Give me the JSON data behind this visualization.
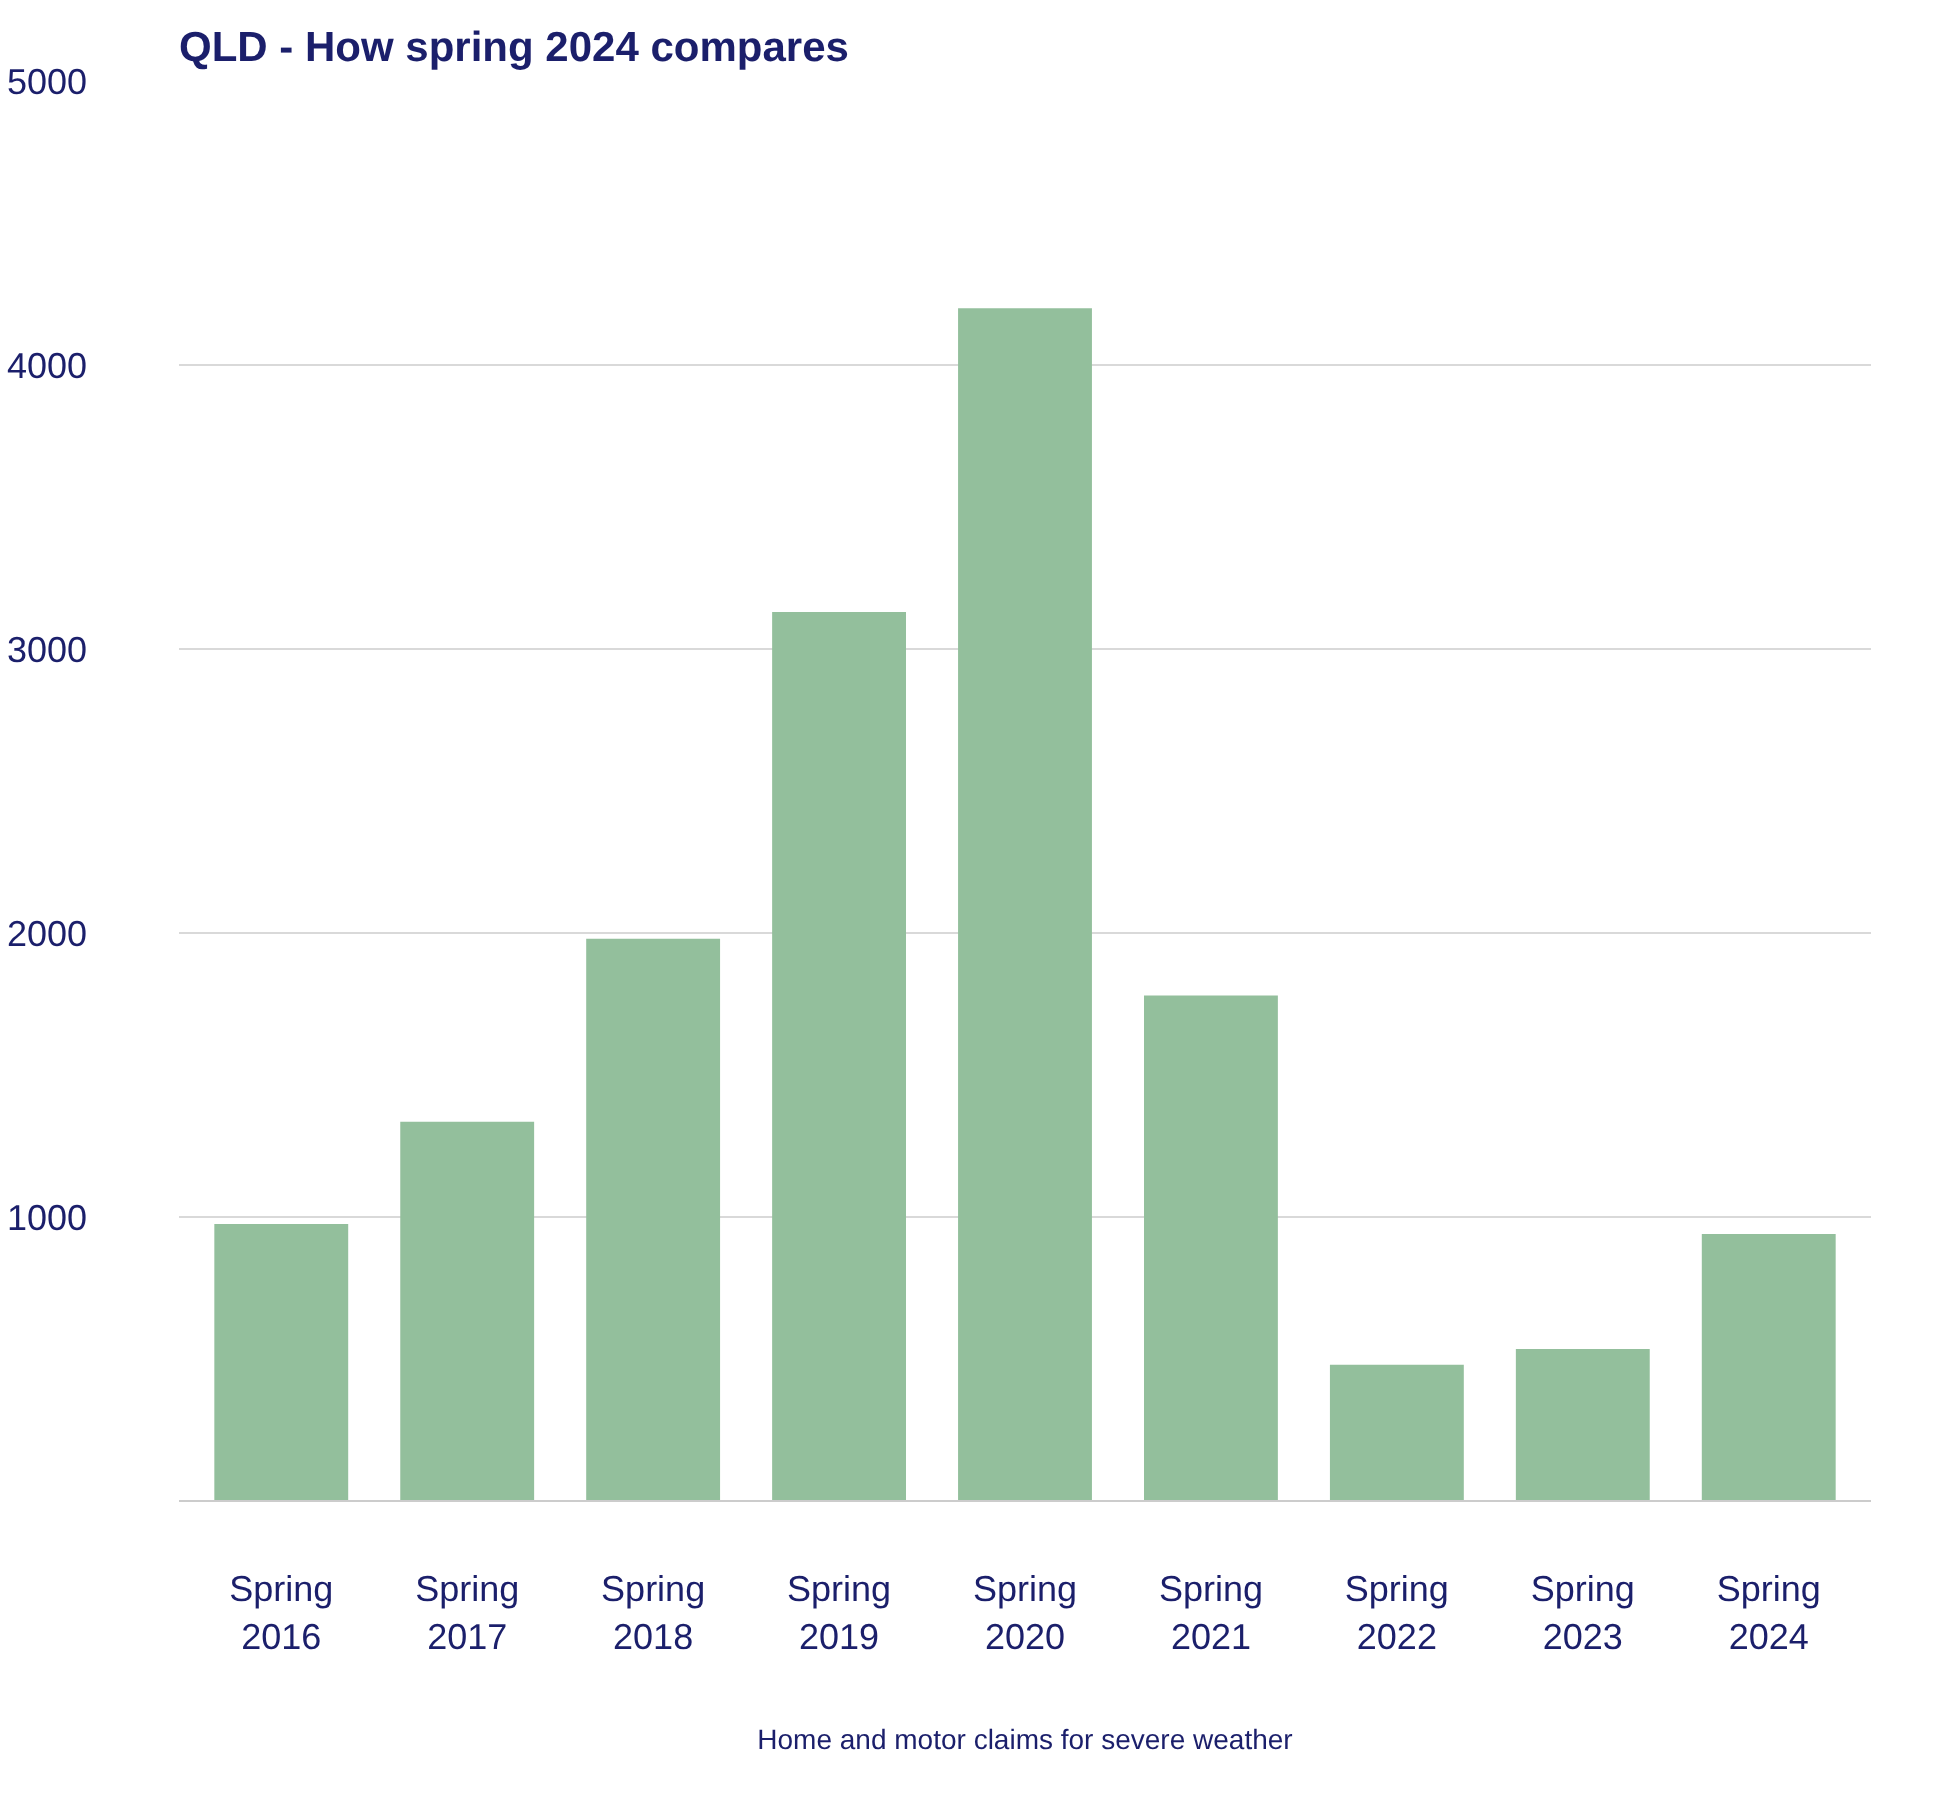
{
  "chart_data": {
    "type": "bar",
    "title": "QLD - How spring 2024 compares",
    "xlabel": "Home and motor claims for severe weather",
    "categories": [
      "Spring 2016",
      "Spring 2017",
      "Spring 2018",
      "Spring 2019",
      "Spring 2020",
      "Spring 2021",
      "Spring 2022",
      "Spring 2023",
      "Spring 2024"
    ],
    "values": [
      975,
      1335,
      1980,
      3130,
      4200,
      1780,
      480,
      535,
      940
    ],
    "color": "#93bf9c",
    "ylim": [
      0,
      5000
    ],
    "yticks": [
      {
        "value": 0,
        "label": null
      },
      1000,
      2000,
      3000,
      4000,
      5000
    ],
    "grid": "y"
  }
}
